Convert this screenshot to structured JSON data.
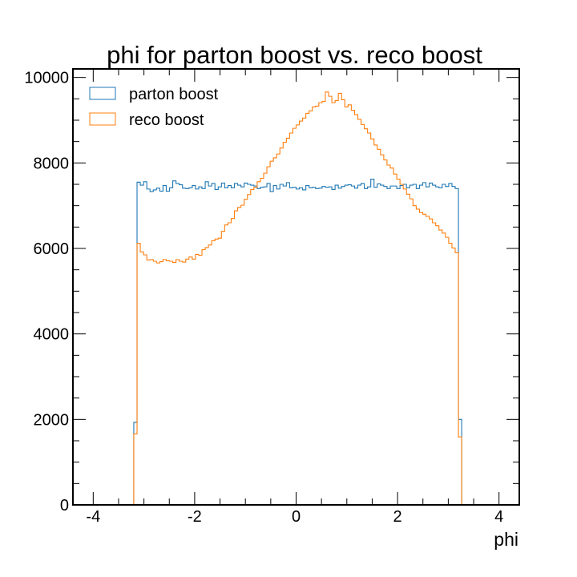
{
  "chart_data": {
    "type": "histogram",
    "title": "phi for parton boost vs. reco boost",
    "xlabel": "phi",
    "ylabel": "",
    "xlim": [
      -4.4,
      4.4
    ],
    "ylim": [
      0,
      10200
    ],
    "xticks": [
      -4,
      -2,
      0,
      2,
      4
    ],
    "yticks": [
      0,
      2000,
      4000,
      6000,
      8000,
      10000
    ],
    "grid": false,
    "legend_position": "top-left",
    "bin_start": -3.2,
    "bin_width": 0.064,
    "series": [
      {
        "name": "parton boost",
        "color": "#1f77b4",
        "values": [
          1930,
          7550,
          7480,
          7560,
          7390,
          7330,
          7370,
          7410,
          7340,
          7470,
          7340,
          7420,
          7580,
          7520,
          7490,
          7410,
          7400,
          7420,
          7470,
          7390,
          7440,
          7400,
          7560,
          7460,
          7520,
          7380,
          7440,
          7530,
          7420,
          7470,
          7420,
          7520,
          7480,
          7440,
          7530,
          7500,
          7480,
          7460,
          7400,
          7430,
          7440,
          7520,
          7330,
          7470,
          7390,
          7500,
          7460,
          7540,
          7420,
          7430,
          7390,
          7420,
          7370,
          7470,
          7420,
          7430,
          7400,
          7410,
          7450,
          7430,
          7440,
          7380,
          7480,
          7410,
          7450,
          7480,
          7490,
          7460,
          7410,
          7480,
          7520,
          7400,
          7440,
          7620,
          7430,
          7510,
          7480,
          7450,
          7400,
          7460,
          7460,
          7400,
          7470,
          7500,
          7420,
          7480,
          7500,
          7400,
          7480,
          7540,
          7440,
          7530,
          7480,
          7440,
          7420,
          7500,
          7450,
          7520,
          7450,
          7400,
          2000
        ]
      },
      {
        "name": "reco boost",
        "color": "#ff7f0e",
        "values": [
          1660,
          6120,
          5920,
          5850,
          5730,
          5740,
          5700,
          5660,
          5690,
          5740,
          5710,
          5700,
          5670,
          5740,
          5700,
          5680,
          5750,
          5800,
          5750,
          5860,
          5840,
          5970,
          6020,
          6080,
          6180,
          6220,
          6240,
          6400,
          6550,
          6600,
          6700,
          6880,
          6960,
          7010,
          7150,
          7260,
          7380,
          7430,
          7560,
          7640,
          7760,
          7910,
          8040,
          8120,
          8210,
          8350,
          8480,
          8580,
          8700,
          8810,
          8890,
          8980,
          9050,
          9160,
          9220,
          9310,
          9330,
          9410,
          9440,
          9660,
          9560,
          9410,
          9460,
          9630,
          9480,
          9310,
          9360,
          9230,
          9130,
          9020,
          8900,
          8800,
          8700,
          8560,
          8420,
          8320,
          8190,
          8070,
          7950,
          7880,
          7740,
          7620,
          7500,
          7390,
          7270,
          7160,
          7000,
          6920,
          6840,
          6800,
          6750,
          6690,
          6600,
          6530,
          6430,
          6360,
          6260,
          6120,
          6010,
          5900,
          1590
        ]
      }
    ]
  }
}
